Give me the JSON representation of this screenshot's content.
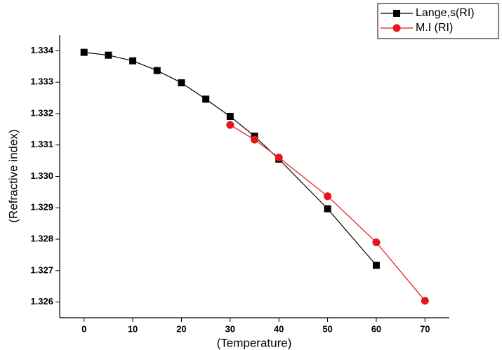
{
  "chart_data": {
    "type": "line",
    "x_label": "(Temperature)",
    "y_label": "(Refractive index)",
    "xlim": [
      -5,
      75
    ],
    "xticks": [
      0,
      10,
      20,
      30,
      40,
      50,
      60,
      70
    ],
    "ylim": [
      1.3255,
      1.3345
    ],
    "yticks": [
      1.326,
      1.327,
      1.328,
      1.329,
      1.33,
      1.331,
      1.332,
      1.333,
      1.334
    ],
    "yticklabels": [
      "1.326",
      "1.327",
      "1.328",
      "1.329",
      "1.330",
      "1.331",
      "1.332",
      "1.333",
      "1.334"
    ],
    "legend": "upper right",
    "series": [
      {
        "name": "Lange,s(RI)",
        "color": "#000000",
        "marker": "square",
        "x": [
          0,
          5,
          10,
          15,
          20,
          25,
          30,
          35,
          40,
          50,
          60
        ],
        "values": [
          1.33395,
          1.33386,
          1.33368,
          1.33337,
          1.33298,
          1.33246,
          1.33191,
          1.33128,
          1.33055,
          1.32897,
          1.32717
        ]
      },
      {
        "name": "M.I (RI)",
        "color": "#e8141b",
        "marker": "circle",
        "x": [
          30,
          35,
          40,
          50,
          60,
          70
        ],
        "values": [
          1.33164,
          1.33117,
          1.3306,
          1.32937,
          1.3279,
          1.32604
        ]
      }
    ]
  }
}
